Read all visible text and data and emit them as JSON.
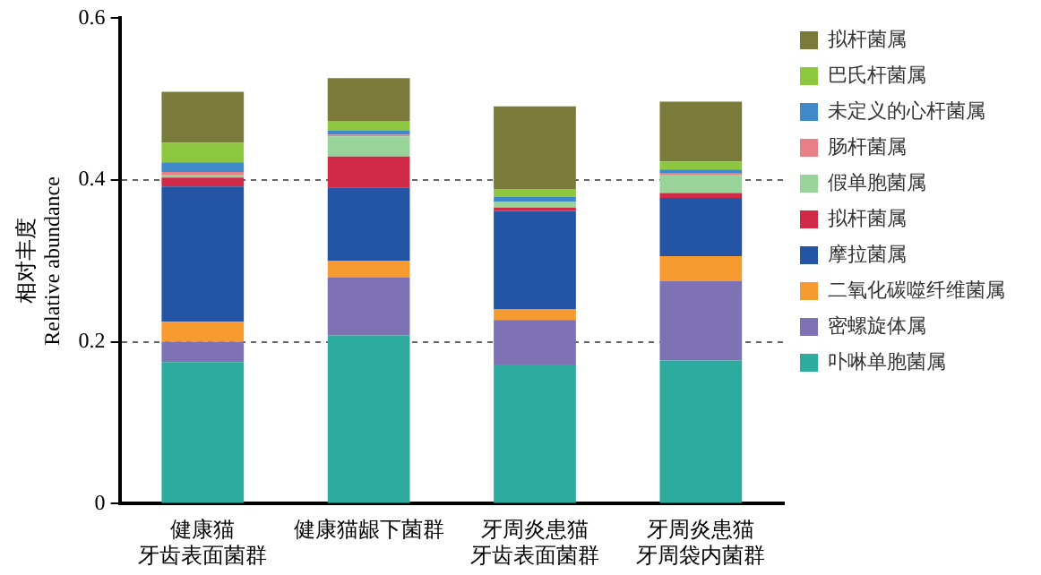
{
  "chart_data": {
    "type": "bar",
    "stacked": true,
    "ylabel": "相对丰度\nRelative abundance",
    "categories": [
      "健康猫牙齿表面菌群",
      "健康猫龈下菌群",
      "牙周炎患猫牙齿表面菌群",
      "牙周炎患猫牙周袋内菌群"
    ],
    "series": [
      {
        "name": "卟啉单胞菌属",
        "color": "#2eab9f",
        "values": [
          0.175,
          0.208,
          0.172,
          0.177
        ]
      },
      {
        "name": "密螺旋体属",
        "color": "#7e72b5",
        "values": [
          0.025,
          0.072,
          0.055,
          0.098
        ]
      },
      {
        "name": "二氧化碳噬纤维菌属",
        "color": "#f79b30",
        "values": [
          0.025,
          0.02,
          0.013,
          0.031
        ]
      },
      {
        "name": "摩拉菌属",
        "color": "#2454a4",
        "values": [
          0.167,
          0.091,
          0.122,
          0.072
        ]
      },
      {
        "name": "拟杆菌属",
        "color": "#d12a48",
        "values": [
          0.011,
          0.038,
          0.004,
          0.006
        ]
      },
      {
        "name": "假单胞菌属",
        "color": "#98d49a",
        "values": [
          0.003,
          0.025,
          0.007,
          0.022
        ]
      },
      {
        "name": "肠杆菌属",
        "color": "#e87f86",
        "values": [
          0.004,
          0.002,
          null,
          0.002
        ]
      },
      {
        "name": "未定义的心杆菌属",
        "color": "#3f88c9",
        "values": [
          0.012,
          0.005,
          0.006,
          0.005
        ]
      },
      {
        "name": "巴氏杆菌属",
        "color": "#8dc63f",
        "values": [
          0.024,
          0.012,
          0.01,
          0.01
        ]
      },
      {
        "name": "拟杆菌属",
        "color": "#7a7a3a",
        "values": [
          0.063,
          0.053,
          0.102,
          0.074
        ]
      }
    ],
    "ylim": [
      0,
      0.6
    ],
    "yticks": [
      0,
      0.2,
      0.4,
      0.6
    ],
    "grid": "y",
    "legend": "right"
  }
}
